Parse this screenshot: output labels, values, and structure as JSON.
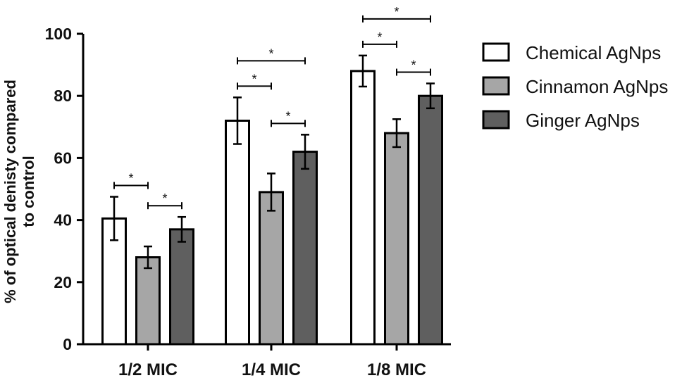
{
  "chart_data": {
    "type": "bar",
    "title": "",
    "xlabel": "",
    "ylabel_line1": "% of optical denisty compared",
    "ylabel_line2": "to control",
    "ylim": [
      0,
      100
    ],
    "yticks": [
      "0",
      "20",
      "40",
      "60",
      "80",
      "100"
    ],
    "categories": [
      "1/2 MIC",
      "1/4 MIC",
      "1/8 MIC"
    ],
    "series": [
      {
        "name": "Chemical AgNps",
        "color": "#ffffff",
        "values": [
          40.5,
          72,
          88
        ],
        "errors": [
          7,
          7.5,
          5
        ]
      },
      {
        "name": "Cinnamon AgNps",
        "color": "#a6a6a6",
        "values": [
          28,
          49,
          68
        ],
        "errors": [
          3.5,
          6,
          4.5
        ]
      },
      {
        "name": "Ginger AgNps",
        "color": "#5f5f5f",
        "values": [
          37,
          62,
          80
        ],
        "errors": [
          4,
          5.5,
          4
        ]
      }
    ],
    "significance": [
      {
        "category": 0,
        "from": 0,
        "to": 1,
        "level": 0,
        "label": "*"
      },
      {
        "category": 0,
        "from": 1,
        "to": 2,
        "level": 0,
        "label": "*"
      },
      {
        "category": 1,
        "from": 0,
        "to": 1,
        "level": 0,
        "label": "*"
      },
      {
        "category": 1,
        "from": 1,
        "to": 2,
        "level": 0,
        "label": "*"
      },
      {
        "category": 1,
        "from": 0,
        "to": 2,
        "level": 1,
        "label": "*"
      },
      {
        "category": 2,
        "from": 0,
        "to": 1,
        "level": 0,
        "label": "*"
      },
      {
        "category": 2,
        "from": 1,
        "to": 2,
        "level": 0,
        "label": "*"
      },
      {
        "category": 2,
        "from": 0,
        "to": 2,
        "level": 1,
        "label": "*"
      }
    ],
    "legend_position": "right"
  }
}
